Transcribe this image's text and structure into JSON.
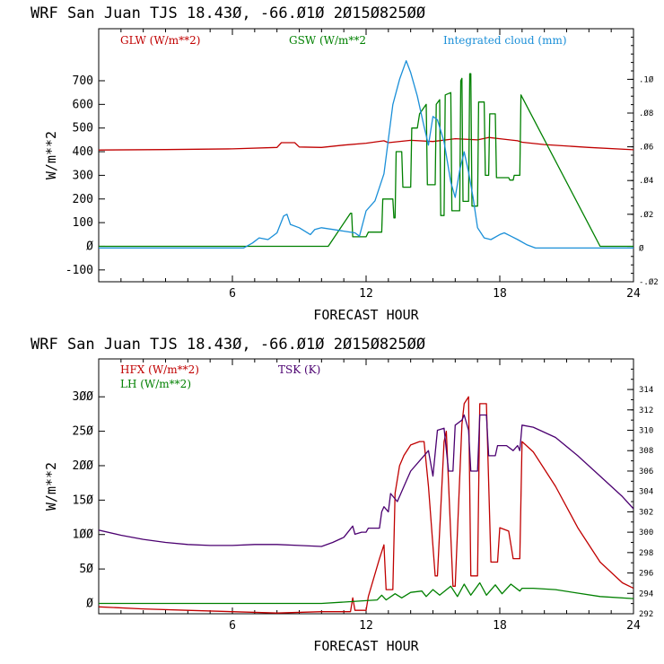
{
  "chart_data": [
    {
      "type": "line",
      "title": "WRF  San Juan TJS  18.43Ø, -66.Ø1Ø  2Ø15Ø825ØØ",
      "xlabel": "FORECAST HOUR",
      "ylabel": "W/m**2",
      "xlim": [
        0,
        24
      ],
      "ylim": [
        -150,
        920
      ],
      "y2lim": [
        -0.02,
        0.13
      ],
      "xticks": [
        "6",
        "12",
        "18",
        "24"
      ],
      "yticks": [
        "-100",
        "Ø",
        "100",
        "200",
        "300",
        "400",
        "500",
        "600",
        "700"
      ],
      "y2ticks": [
        "-.Ø2",
        "Ø",
        ".Ø2",
        ".Ø4",
        ".Ø6",
        ".Ø8",
        ".1Ø"
      ],
      "series": [
        {
          "name": "GLW (W/m**2)",
          "color": "#c00000",
          "axis": "left",
          "x": [
            0,
            3,
            6,
            8,
            8.2,
            8.8,
            9,
            10,
            11,
            12,
            12.8,
            13,
            14,
            15,
            16,
            17,
            17.5,
            18,
            18.8,
            19,
            20,
            22,
            24
          ],
          "y": [
            407,
            409,
            412,
            418,
            438,
            438,
            420,
            418,
            428,
            436,
            446,
            438,
            448,
            443,
            455,
            450,
            460,
            455,
            446,
            440,
            430,
            418,
            408
          ]
        },
        {
          "name": "GSW (W/m**2",
          "color": "#008000",
          "axis": "left",
          "x": [
            0,
            10.3,
            11.3,
            11.35,
            11.4,
            12,
            12.1,
            12.7,
            12.75,
            13.2,
            13.25,
            13.3,
            13.35,
            13.6,
            13.65,
            14.0,
            14.05,
            14.3,
            14.4,
            14.7,
            14.75,
            15.1,
            15.15,
            15.3,
            15.35,
            15.5,
            15.55,
            15.8,
            15.85,
            16.2,
            16.25,
            16.3,
            16.35,
            16.6,
            16.65,
            16.7,
            16.75,
            17.0,
            17.05,
            17.3,
            17.35,
            17.5,
            17.55,
            17.8,
            17.85,
            18.4,
            18.45,
            18.6,
            18.65,
            18.9,
            18.95,
            22.5,
            24
          ],
          "y": [
            0,
            0,
            140,
            140,
            40,
            40,
            60,
            60,
            200,
            200,
            120,
            120,
            400,
            400,
            250,
            250,
            500,
            500,
            560,
            600,
            260,
            260,
            600,
            620,
            130,
            130,
            640,
            650,
            150,
            150,
            700,
            710,
            190,
            190,
            730,
            730,
            170,
            170,
            610,
            610,
            300,
            300,
            560,
            560,
            290,
            290,
            280,
            280,
            300,
            300,
            640,
            0,
            0
          ]
        },
        {
          "name": "Integrated cloud (mm)",
          "color": "#1a8fd8",
          "axis": "right",
          "x": [
            0,
            6.5,
            6.9,
            7.2,
            7.6,
            8.0,
            8.3,
            8.45,
            8.6,
            9.0,
            9.5,
            9.7,
            10.0,
            10.5,
            11.0,
            11.5,
            11.7,
            12.0,
            12.4,
            12.8,
            13.2,
            13.5,
            13.8,
            14.0,
            14.3,
            14.6,
            14.8,
            15.0,
            15.2,
            15.5,
            15.8,
            16.0,
            16.2,
            16.4,
            16.6,
            16.8,
            17.0,
            17.3,
            17.6,
            18.0,
            18.2,
            18.5,
            18.8,
            19.2,
            19.6,
            24
          ],
          "y": [
            0,
            0,
            0.003,
            0.006,
            0.005,
            0.009,
            0.019,
            0.02,
            0.014,
            0.012,
            0.008,
            0.011,
            0.012,
            0.011,
            0.01,
            0.009,
            0.007,
            0.022,
            0.028,
            0.044,
            0.085,
            0.1,
            0.111,
            0.104,
            0.09,
            0.072,
            0.061,
            0.078,
            0.076,
            0.063,
            0.039,
            0.03,
            0.046,
            0.057,
            0.045,
            0.03,
            0.012,
            0.006,
            0.005,
            0.008,
            0.009,
            0.007,
            0.005,
            0.002,
            0,
            0
          ]
        }
      ]
    },
    {
      "type": "line",
      "title": "WRF  San Juan TJS  18.43Ø, -66.Ø1Ø  2Ø15Ø825ØØ",
      "xlabel": "FORECAST HOUR",
      "ylabel": "W/m**2",
      "xlim": [
        0,
        24
      ],
      "ylim": [
        -15,
        355
      ],
      "y2lim": [
        292,
        317
      ],
      "xticks": [
        "6",
        "12",
        "18",
        "24"
      ],
      "yticks": [
        "Ø",
        "5Ø",
        "1ØØ",
        "15Ø",
        "2ØØ",
        "25Ø",
        "3ØØ"
      ],
      "y2ticks": [
        "292",
        "294",
        "296",
        "298",
        "300",
        "302",
        "304",
        "306",
        "308",
        "310",
        "312",
        "314"
      ],
      "series": [
        {
          "name": "HFX (W/m**2)",
          "color": "#c00000",
          "axis": "left",
          "x": [
            0,
            2,
            4,
            6,
            8,
            10,
            11.3,
            11.4,
            11.5,
            12.0,
            12.1,
            12.6,
            12.8,
            12.9,
            13.2,
            13.3,
            13.5,
            13.7,
            14.0,
            14.4,
            14.6,
            14.8,
            15.1,
            15.2,
            15.5,
            15.6,
            15.9,
            16.0,
            16.3,
            16.4,
            16.6,
            16.7,
            17.0,
            17.1,
            17.4,
            17.6,
            17.9,
            18.0,
            18.4,
            18.6,
            18.9,
            19.0,
            19.5,
            20.5,
            21.5,
            22.5,
            23.5,
            24
          ],
          "y": [
            -5,
            -8,
            -10,
            -12,
            -14,
            -12,
            -12,
            8,
            -10,
            -10,
            10,
            65,
            85,
            20,
            20,
            160,
            200,
            215,
            230,
            235,
            235,
            170,
            40,
            40,
            235,
            250,
            25,
            25,
            260,
            290,
            300,
            40,
            40,
            290,
            290,
            60,
            60,
            110,
            105,
            65,
            65,
            235,
            220,
            170,
            110,
            60,
            30,
            22
          ]
        },
        {
          "name": "LH (W/m**2)",
          "color": "#008000",
          "axis": "left",
          "x": [
            0,
            4,
            8,
            10,
            11,
            12,
            12.5,
            12.7,
            12.9,
            13.3,
            13.6,
            14.0,
            14.5,
            14.7,
            15.0,
            15.3,
            15.8,
            16.1,
            16.4,
            16.7,
            17.1,
            17.4,
            17.8,
            18.1,
            18.5,
            18.9,
            19.0,
            19.5,
            20.5,
            21.5,
            22.5,
            24
          ],
          "y": [
            0,
            0,
            0,
            0,
            2,
            4,
            5,
            12,
            5,
            14,
            8,
            16,
            18,
            10,
            20,
            12,
            25,
            10,
            28,
            12,
            30,
            12,
            27,
            14,
            28,
            18,
            22,
            22,
            20,
            15,
            10,
            7
          ]
        },
        {
          "name": "TSK (K)",
          "color": "#4b0070",
          "axis": "right",
          "x": [
            0,
            1,
            2,
            3,
            4,
            5,
            6,
            7,
            8,
            9,
            10,
            10.5,
            11.0,
            11.4,
            11.5,
            11.8,
            12.0,
            12.1,
            12.6,
            12.7,
            12.8,
            13.0,
            13.1,
            13.4,
            13.6,
            13.8,
            14.0,
            14.4,
            14.8,
            15.0,
            15.2,
            15.5,
            15.7,
            15.9,
            16.0,
            16.3,
            16.4,
            16.6,
            16.7,
            17.0,
            17.1,
            17.4,
            17.5,
            17.8,
            17.9,
            18.3,
            18.6,
            18.8,
            18.9,
            19.0,
            19.5,
            20.5,
            21.5,
            22.5,
            23.5,
            24
          ],
          "y": [
            300.2,
            299.7,
            299.3,
            299.0,
            298.8,
            298.7,
            298.7,
            298.8,
            298.8,
            298.7,
            298.6,
            299.0,
            299.5,
            300.6,
            299.8,
            300.0,
            300.0,
            300.4,
            300.4,
            302.0,
            302.5,
            302.0,
            303.8,
            303.0,
            304.0,
            305.0,
            306.0,
            307.0,
            308.0,
            305.5,
            310.0,
            310.2,
            306.0,
            306.0,
            310.5,
            311.0,
            311.5,
            310.0,
            306.0,
            306.0,
            311.5,
            311.5,
            307.5,
            307.5,
            308.5,
            308.5,
            308.0,
            308.5,
            308.0,
            310.5,
            310.3,
            309.3,
            307.5,
            305.5,
            303.5,
            302.3
          ]
        }
      ]
    }
  ]
}
